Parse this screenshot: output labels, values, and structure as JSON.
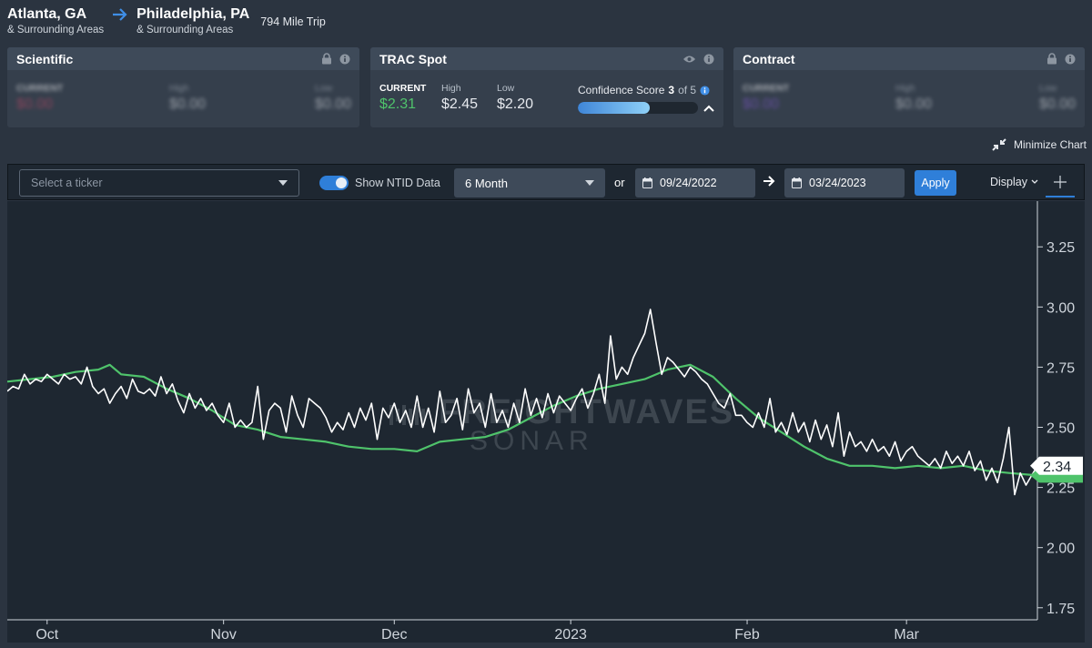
{
  "route": {
    "origin_city": "Atlanta, GA",
    "origin_sub": "& Surrounding Areas",
    "dest_city": "Philadelphia, PA",
    "dest_sub": "& Surrounding Areas",
    "trip": "794 Mile Trip"
  },
  "cards": {
    "scientific": {
      "title": "Scientific",
      "current_label": "CURRENT",
      "current": "$0.00",
      "high_label": "High",
      "high": "$0.00",
      "low_label": "Low",
      "low": "$0.00"
    },
    "trac": {
      "title": "TRAC Spot",
      "current_label": "CURRENT",
      "current": "$2.31",
      "high_label": "High",
      "high": "$2.45",
      "low_label": "Low",
      "low": "$2.20",
      "confidence_label": "Confidence Score",
      "confidence_score": "3",
      "confidence_of": "of 5",
      "confidence_fraction": 0.6
    },
    "contract": {
      "title": "Contract",
      "current_label": "CURRENT",
      "current": "$0.00",
      "high_label": "High",
      "high": "$0.00",
      "low_label": "Low",
      "low": "$0.00"
    }
  },
  "minimize_label": "Minimize Chart",
  "toolbar": {
    "ticker_placeholder": "Select a ticker",
    "ntid_label": "Show NTID Data",
    "period": "6 Month",
    "or_label": "or",
    "start_date": "09/24/2022",
    "end_date": "03/24/2023",
    "apply_label": "Apply",
    "display_label": "Display"
  },
  "watermark": {
    "line1": "FREIGHTWAVES",
    "line2": "SONAR"
  },
  "colors": {
    "accent": "#2f7fd9",
    "green": "#4fc36b",
    "white_line": "#ffffff",
    "background": "#1e2731"
  },
  "chart_data": {
    "type": "line",
    "x_start": "2022-09-24",
    "x_end": "2023-03-24",
    "x_ticks": [
      {
        "label": "Oct",
        "date": "2022-10-01"
      },
      {
        "label": "Nov",
        "date": "2022-11-01"
      },
      {
        "label": "Dec",
        "date": "2022-12-01"
      },
      {
        "label": "2023",
        "date": "2023-01-01"
      },
      {
        "label": "Feb",
        "date": "2023-02-01"
      },
      {
        "label": "Mar",
        "date": "2023-03-01"
      }
    ],
    "y_ticks": [
      "3.25",
      "3.00",
      "2.75",
      "2.50",
      "2.25",
      "2.00",
      "1.75"
    ],
    "ylim": [
      1.7,
      3.44
    ],
    "last_value_label": "2.34",
    "series": [
      {
        "color": "#ffffff",
        "points": [
          [
            "2022-09-24",
            2.65
          ],
          [
            "2022-09-25",
            2.67
          ],
          [
            "2022-09-26",
            2.66
          ],
          [
            "2022-09-27",
            2.72
          ],
          [
            "2022-09-28",
            2.68
          ],
          [
            "2022-09-29",
            2.7
          ],
          [
            "2022-09-30",
            2.69
          ],
          [
            "2022-10-01",
            2.72
          ],
          [
            "2022-10-02",
            2.7
          ],
          [
            "2022-10-03",
            2.68
          ],
          [
            "2022-10-04",
            2.72
          ],
          [
            "2022-10-05",
            2.7
          ],
          [
            "2022-10-06",
            2.71
          ],
          [
            "2022-10-07",
            2.68
          ],
          [
            "2022-10-08",
            2.75
          ],
          [
            "2022-10-09",
            2.67
          ],
          [
            "2022-10-10",
            2.64
          ],
          [
            "2022-10-11",
            2.66
          ],
          [
            "2022-10-12",
            2.6
          ],
          [
            "2022-10-13",
            2.64
          ],
          [
            "2022-10-14",
            2.67
          ],
          [
            "2022-10-15",
            2.62
          ],
          [
            "2022-10-16",
            2.7
          ],
          [
            "2022-10-17",
            2.65
          ],
          [
            "2022-10-18",
            2.64
          ],
          [
            "2022-10-19",
            2.66
          ],
          [
            "2022-10-20",
            2.63
          ],
          [
            "2022-10-21",
            2.71
          ],
          [
            "2022-10-22",
            2.64
          ],
          [
            "2022-10-23",
            2.68
          ],
          [
            "2022-10-24",
            2.61
          ],
          [
            "2022-10-25",
            2.56
          ],
          [
            "2022-10-26",
            2.64
          ],
          [
            "2022-10-27",
            2.58
          ],
          [
            "2022-10-28",
            2.62
          ],
          [
            "2022-10-29",
            2.57
          ],
          [
            "2022-10-30",
            2.6
          ],
          [
            "2022-10-31",
            2.55
          ],
          [
            "2022-11-01",
            2.52
          ],
          [
            "2022-11-02",
            2.6
          ],
          [
            "2022-11-03",
            2.5
          ],
          [
            "2022-11-04",
            2.53
          ],
          [
            "2022-11-05",
            2.5
          ],
          [
            "2022-11-06",
            2.52
          ],
          [
            "2022-11-07",
            2.67
          ],
          [
            "2022-11-08",
            2.45
          ],
          [
            "2022-11-09",
            2.57
          ],
          [
            "2022-11-10",
            2.6
          ],
          [
            "2022-11-11",
            2.58
          ],
          [
            "2022-11-12",
            2.48
          ],
          [
            "2022-11-13",
            2.63
          ],
          [
            "2022-11-14",
            2.55
          ],
          [
            "2022-11-15",
            2.5
          ],
          [
            "2022-11-16",
            2.62
          ],
          [
            "2022-11-17",
            2.6
          ],
          [
            "2022-11-18",
            2.58
          ],
          [
            "2022-11-19",
            2.54
          ],
          [
            "2022-11-20",
            2.48
          ],
          [
            "2022-11-21",
            2.52
          ],
          [
            "2022-11-22",
            2.49
          ],
          [
            "2022-11-23",
            2.56
          ],
          [
            "2022-11-24",
            2.5
          ],
          [
            "2022-11-25",
            2.58
          ],
          [
            "2022-11-26",
            2.53
          ],
          [
            "2022-11-27",
            2.6
          ],
          [
            "2022-11-28",
            2.45
          ],
          [
            "2022-11-29",
            2.58
          ],
          [
            "2022-11-30",
            2.54
          ],
          [
            "2022-12-01",
            2.6
          ],
          [
            "2022-12-02",
            2.52
          ],
          [
            "2022-12-03",
            2.57
          ],
          [
            "2022-12-04",
            2.5
          ],
          [
            "2022-12-05",
            2.63
          ],
          [
            "2022-12-06",
            2.5
          ],
          [
            "2022-12-07",
            2.58
          ],
          [
            "2022-12-08",
            2.48
          ],
          [
            "2022-12-09",
            2.65
          ],
          [
            "2022-12-10",
            2.52
          ],
          [
            "2022-12-11",
            2.55
          ],
          [
            "2022-12-12",
            2.62
          ],
          [
            "2022-12-13",
            2.49
          ],
          [
            "2022-12-14",
            2.66
          ],
          [
            "2022-12-15",
            2.56
          ],
          [
            "2022-12-16",
            2.6
          ],
          [
            "2022-12-17",
            2.5
          ],
          [
            "2022-12-18",
            2.64
          ],
          [
            "2022-12-19",
            2.52
          ],
          [
            "2022-12-20",
            2.57
          ],
          [
            "2022-12-21",
            2.5
          ],
          [
            "2022-12-22",
            2.6
          ],
          [
            "2022-12-23",
            2.52
          ],
          [
            "2022-12-24",
            2.66
          ],
          [
            "2022-12-25",
            2.55
          ],
          [
            "2022-12-26",
            2.62
          ],
          [
            "2022-12-27",
            2.54
          ],
          [
            "2022-12-28",
            2.64
          ],
          [
            "2022-12-29",
            2.56
          ],
          [
            "2022-12-30",
            2.63
          ],
          [
            "2022-12-31",
            2.6
          ],
          [
            "2023-01-01",
            2.57
          ],
          [
            "2023-01-02",
            2.62
          ],
          [
            "2023-01-03",
            2.66
          ],
          [
            "2023-01-04",
            2.58
          ],
          [
            "2023-01-05",
            2.64
          ],
          [
            "2023-01-06",
            2.72
          ],
          [
            "2023-01-07",
            2.6
          ],
          [
            "2023-01-08",
            2.88
          ],
          [
            "2023-01-09",
            2.7
          ],
          [
            "2023-01-10",
            2.75
          ],
          [
            "2023-01-11",
            2.72
          ],
          [
            "2023-01-12",
            2.79
          ],
          [
            "2023-01-13",
            2.84
          ],
          [
            "2023-01-14",
            2.89
          ],
          [
            "2023-01-15",
            2.99
          ],
          [
            "2023-01-16",
            2.85
          ],
          [
            "2023-01-17",
            2.72
          ],
          [
            "2023-01-18",
            2.79
          ],
          [
            "2023-01-19",
            2.77
          ],
          [
            "2023-01-20",
            2.74
          ],
          [
            "2023-01-21",
            2.71
          ],
          [
            "2023-01-22",
            2.75
          ],
          [
            "2023-01-23",
            2.73
          ],
          [
            "2023-01-24",
            2.7
          ],
          [
            "2023-01-25",
            2.68
          ],
          [
            "2023-01-26",
            2.64
          ],
          [
            "2023-01-27",
            2.6
          ],
          [
            "2023-01-28",
            2.58
          ],
          [
            "2023-01-29",
            2.64
          ],
          [
            "2023-01-30",
            2.55
          ],
          [
            "2023-01-31",
            2.55
          ],
          [
            "2023-02-01",
            2.52
          ],
          [
            "2023-02-02",
            2.5
          ],
          [
            "2023-02-03",
            2.56
          ],
          [
            "2023-02-04",
            2.5
          ],
          [
            "2023-02-05",
            2.62
          ],
          [
            "2023-02-06",
            2.48
          ],
          [
            "2023-02-07",
            2.52
          ],
          [
            "2023-02-08",
            2.47
          ],
          [
            "2023-02-09",
            2.56
          ],
          [
            "2023-02-10",
            2.48
          ],
          [
            "2023-02-11",
            2.52
          ],
          [
            "2023-02-12",
            2.44
          ],
          [
            "2023-02-13",
            2.53
          ],
          [
            "2023-02-14",
            2.45
          ],
          [
            "2023-02-15",
            2.51
          ],
          [
            "2023-02-16",
            2.42
          ],
          [
            "2023-02-17",
            2.56
          ],
          [
            "2023-02-18",
            2.38
          ],
          [
            "2023-02-19",
            2.48
          ],
          [
            "2023-02-20",
            2.42
          ],
          [
            "2023-02-21",
            2.44
          ],
          [
            "2023-02-22",
            2.4
          ],
          [
            "2023-02-23",
            2.45
          ],
          [
            "2023-02-24",
            2.4
          ],
          [
            "2023-02-25",
            2.42
          ],
          [
            "2023-02-26",
            2.38
          ],
          [
            "2023-02-27",
            2.44
          ],
          [
            "2023-02-28",
            2.36
          ],
          [
            "2023-03-01",
            2.4
          ],
          [
            "2023-03-02",
            2.42
          ],
          [
            "2023-03-03",
            2.38
          ],
          [
            "2023-03-04",
            2.36
          ],
          [
            "2023-03-05",
            2.34
          ],
          [
            "2023-03-06",
            2.37
          ],
          [
            "2023-03-07",
            2.33
          ],
          [
            "2023-03-08",
            2.4
          ],
          [
            "2023-03-09",
            2.35
          ],
          [
            "2023-03-10",
            2.38
          ],
          [
            "2023-03-11",
            2.34
          ],
          [
            "2023-03-12",
            2.4
          ],
          [
            "2023-03-13",
            2.32
          ],
          [
            "2023-03-14",
            2.36
          ],
          [
            "2023-03-15",
            2.28
          ],
          [
            "2023-03-16",
            2.33
          ],
          [
            "2023-03-17",
            2.27
          ],
          [
            "2023-03-18",
            2.37
          ],
          [
            "2023-03-19",
            2.5
          ],
          [
            "2023-03-20",
            2.22
          ],
          [
            "2023-03-21",
            2.31
          ],
          [
            "2023-03-22",
            2.26
          ],
          [
            "2023-03-23",
            2.3
          ],
          [
            "2023-03-24",
            2.34
          ]
        ]
      },
      {
        "color": "#4fc36b",
        "points": [
          [
            "2022-09-24",
            2.69
          ],
          [
            "2022-09-28",
            2.7
          ],
          [
            "2022-10-02",
            2.71
          ],
          [
            "2022-10-06",
            2.73
          ],
          [
            "2022-10-10",
            2.74
          ],
          [
            "2022-10-12",
            2.76
          ],
          [
            "2022-10-14",
            2.72
          ],
          [
            "2022-10-18",
            2.71
          ],
          [
            "2022-10-22",
            2.66
          ],
          [
            "2022-10-26",
            2.62
          ],
          [
            "2022-10-30",
            2.57
          ],
          [
            "2022-11-03",
            2.51
          ],
          [
            "2022-11-07",
            2.49
          ],
          [
            "2022-11-11",
            2.46
          ],
          [
            "2022-11-15",
            2.45
          ],
          [
            "2022-11-19",
            2.44
          ],
          [
            "2022-11-23",
            2.42
          ],
          [
            "2022-11-27",
            2.41
          ],
          [
            "2022-12-01",
            2.41
          ],
          [
            "2022-12-05",
            2.4
          ],
          [
            "2022-12-09",
            2.44
          ],
          [
            "2022-12-13",
            2.45
          ],
          [
            "2022-12-17",
            2.46
          ],
          [
            "2022-12-21",
            2.49
          ],
          [
            "2022-12-25",
            2.54
          ],
          [
            "2022-12-29",
            2.59
          ],
          [
            "2023-01-02",
            2.63
          ],
          [
            "2023-01-06",
            2.66
          ],
          [
            "2023-01-10",
            2.68
          ],
          [
            "2023-01-14",
            2.7
          ],
          [
            "2023-01-18",
            2.74
          ],
          [
            "2023-01-22",
            2.76
          ],
          [
            "2023-01-26",
            2.71
          ],
          [
            "2023-01-30",
            2.62
          ],
          [
            "2023-02-03",
            2.54
          ],
          [
            "2023-02-07",
            2.48
          ],
          [
            "2023-02-11",
            2.42
          ],
          [
            "2023-02-15",
            2.37
          ],
          [
            "2023-02-19",
            2.34
          ],
          [
            "2023-02-23",
            2.34
          ],
          [
            "2023-02-27",
            2.33
          ],
          [
            "2023-03-03",
            2.34
          ],
          [
            "2023-03-07",
            2.33
          ],
          [
            "2023-03-11",
            2.34
          ],
          [
            "2023-03-15",
            2.32
          ],
          [
            "2023-03-19",
            2.31
          ],
          [
            "2023-03-24",
            2.3
          ]
        ]
      }
    ]
  }
}
